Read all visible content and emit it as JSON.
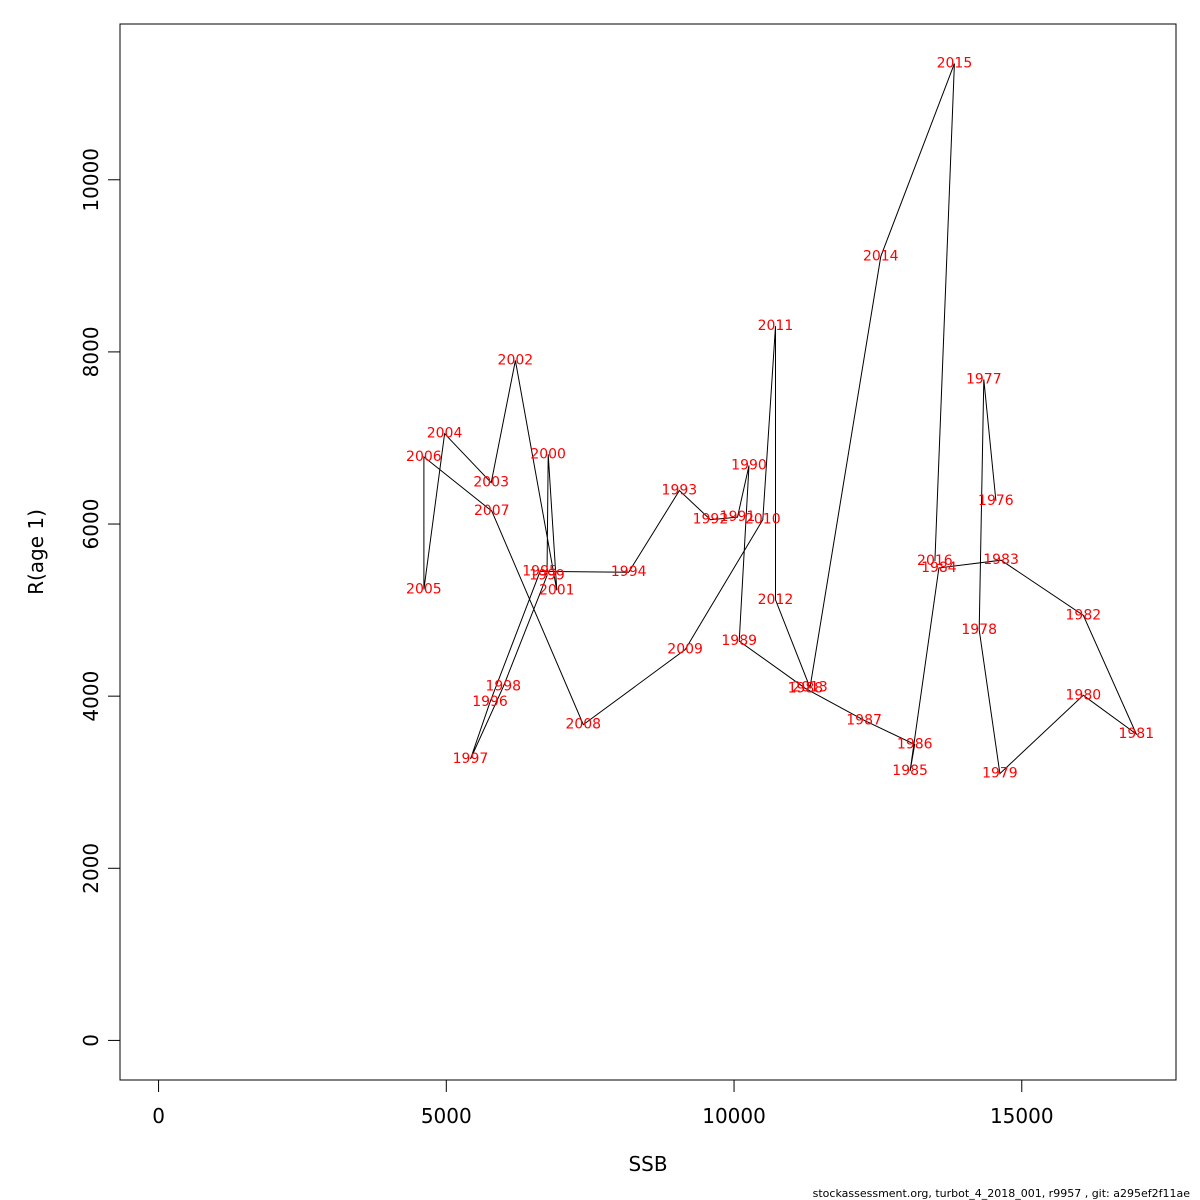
{
  "chart_data": {
    "type": "line",
    "xlabel": "SSB",
    "ylabel": "R(age 1)",
    "xlim": [
      -670,
      17680
    ],
    "ylim": [
      -460,
      11810
    ],
    "x_ticks": [
      0,
      5000,
      10000,
      15000
    ],
    "y_ticks": [
      0,
      2000,
      4000,
      6000,
      8000,
      10000
    ],
    "grid": false,
    "line_color": "#000000",
    "label_color": "#ff0000",
    "points": [
      {
        "year": "1976",
        "x": 14550,
        "y": 6270
      },
      {
        "year": "1977",
        "x": 14340,
        "y": 7680
      },
      {
        "year": "1978",
        "x": 14260,
        "y": 4770
      },
      {
        "year": "1979",
        "x": 14620,
        "y": 3100
      },
      {
        "year": "1980",
        "x": 16070,
        "y": 4010
      },
      {
        "year": "1981",
        "x": 16990,
        "y": 3560
      },
      {
        "year": "1982",
        "x": 16070,
        "y": 4940
      },
      {
        "year": "1983",
        "x": 14640,
        "y": 5580
      },
      {
        "year": "1984",
        "x": 13560,
        "y": 5490
      },
      {
        "year": "1985",
        "x": 13060,
        "y": 3130
      },
      {
        "year": "1986",
        "x": 13140,
        "y": 3440
      },
      {
        "year": "1987",
        "x": 12260,
        "y": 3720
      },
      {
        "year": "1988",
        "x": 11240,
        "y": 4090
      },
      {
        "year": "1989",
        "x": 10090,
        "y": 4640
      },
      {
        "year": "1990",
        "x": 10260,
        "y": 6680
      },
      {
        "year": "1991",
        "x": 10060,
        "y": 6080
      },
      {
        "year": "1992",
        "x": 9590,
        "y": 6050
      },
      {
        "year": "1993",
        "x": 9050,
        "y": 6390
      },
      {
        "year": "1994",
        "x": 8170,
        "y": 5440
      },
      {
        "year": "1995",
        "x": 6630,
        "y": 5450
      },
      {
        "year": "1996",
        "x": 5760,
        "y": 3930
      },
      {
        "year": "1997",
        "x": 5420,
        "y": 3270
      },
      {
        "year": "1998",
        "x": 5990,
        "y": 4110
      },
      {
        "year": "1999",
        "x": 6750,
        "y": 5400
      },
      {
        "year": "2000",
        "x": 6770,
        "y": 6810
      },
      {
        "year": "2001",
        "x": 6920,
        "y": 5230
      },
      {
        "year": "2002",
        "x": 6200,
        "y": 7900
      },
      {
        "year": "2003",
        "x": 5780,
        "y": 6480
      },
      {
        "year": "2004",
        "x": 4970,
        "y": 7050
      },
      {
        "year": "2005",
        "x": 4610,
        "y": 5240
      },
      {
        "year": "2006",
        "x": 4610,
        "y": 6780
      },
      {
        "year": "2007",
        "x": 5790,
        "y": 6150
      },
      {
        "year": "2008",
        "x": 7380,
        "y": 3670
      },
      {
        "year": "2009",
        "x": 9150,
        "y": 4540
      },
      {
        "year": "2010",
        "x": 10500,
        "y": 6050
      },
      {
        "year": "2011",
        "x": 10720,
        "y": 8300
      },
      {
        "year": "2012",
        "x": 10720,
        "y": 5120
      },
      {
        "year": "2013",
        "x": 11320,
        "y": 4100
      },
      {
        "year": "2014",
        "x": 12550,
        "y": 9110
      },
      {
        "year": "2015",
        "x": 13830,
        "y": 11350
      },
      {
        "year": "2016",
        "x": 13490,
        "y": 5570
      }
    ]
  },
  "footer": "stockassessment.org, turbot_4_2018_001, r9957 , git: a295ef2f11ae"
}
